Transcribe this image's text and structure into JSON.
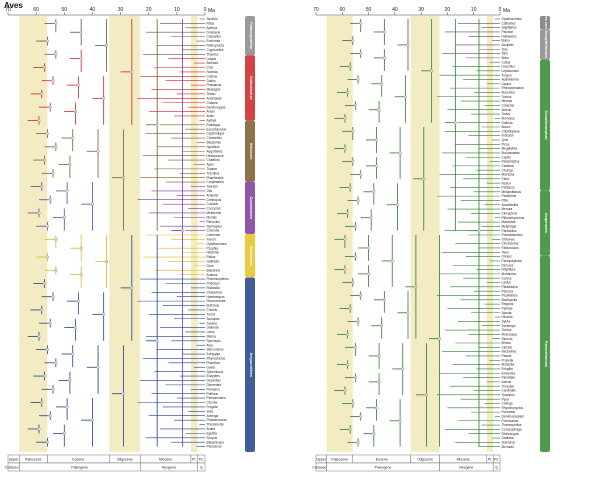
{
  "title": "Aves",
  "axis": {
    "left_ticks": [
      "70",
      "60",
      "50",
      "40",
      "30",
      "20",
      "10",
      "0"
    ],
    "right_ticks": [
      "70",
      "60",
      "50",
      "40",
      "30",
      "20",
      "10",
      "0"
    ],
    "unit": "Ma"
  },
  "timescale": {
    "epochs": [
      "Upper",
      "Paleocene",
      "Eocene",
      "Oligocene",
      "Miocene",
      "PI.",
      "Ps."
    ],
    "periods": [
      "Cretaceous",
      "Paleogene",
      "Neogene",
      "Q"
    ]
  },
  "left_clades": [
    {
      "name": "Palaeognathae",
      "color": "#8a8a8a"
    },
    {
      "name": "Galloanserae",
      "color": "#cc2222"
    },
    {
      "name": "Strisores",
      "color": "#7a5a2a"
    },
    {
      "name": "Columbaves",
      "color": "#7a3a9a"
    },
    {
      "name": "Otidimorphae",
      "color": "#7a3a9a"
    },
    {
      "name": "Columbimorphae",
      "color": "#7a3a9a"
    },
    {
      "name": "Gruiformes",
      "color": "#e8c020"
    },
    {
      "name": "Aequornithes",
      "color": "#1d3f8a"
    },
    {
      "name": "Neoaves",
      "color": "#1d3f8a"
    }
  ],
  "right_clades": [
    {
      "name": "Neoaves continued",
      "color": "#777777"
    },
    {
      "name": "Accipitriformes",
      "color": "#888888"
    },
    {
      "name": "Coraciimorphae",
      "color": "#2f8a2f"
    },
    {
      "name": "Inopinaves",
      "color": "#2f8a2f"
    },
    {
      "name": "Australaves",
      "color": "#2f8a2f"
    },
    {
      "name": "Passeriformes",
      "color": "#2f8a2f"
    }
  ],
  "left_taxa": [
    "Struthio",
    "Rhea",
    "Apteryx",
    "Dromaius",
    "Casuarius",
    "Eudromia",
    "Nothoprocta",
    "Crypturellus",
    "Tinamus",
    "Leipoa",
    "Alectura",
    "Crax",
    "Numida",
    "Colinus",
    "Gallus",
    "Phasianus",
    "Meleagris",
    "Tetrao",
    "Anseranas",
    "Chauna",
    "Dendrocygna",
    "Anser",
    "Anas",
    "Aythya",
    "Podargus",
    "Eurostopodus",
    "Caprimulgus",
    "Chordeiles",
    "Steatornis",
    "Nyctibius",
    "Aegotheles",
    "Hemiprocne",
    "Chaetura",
    "Apus",
    "Topaza",
    "Trochilus",
    "Phaethornis",
    "Corythaeola",
    "Tauraco",
    "Otis",
    "Ardeotis",
    "Centropus",
    "Cuculus",
    "Coccyzus",
    "Mesitornis",
    "Monias",
    "Pterocles",
    "Syrrhaptes",
    "Columba",
    "Caloenas",
    "Treron",
    "Opisthocomus",
    "Psophia",
    "Heliornis",
    "Rallus",
    "Gallinula",
    "Grus",
    "Balearica",
    "Aramus",
    "Phoenicopterus",
    "Podiceps",
    "Rollandia",
    "Charadrius",
    "Haematopus",
    "Recurvirostra",
    "Burhinus",
    "Chionis",
    "Turnix",
    "Scolopax",
    "Jacana",
    "Glareola",
    "Larus",
    "Sterna",
    "Rynchops",
    "Alca",
    "Stercorarius",
    "Eurypyga",
    "Rhynochetos",
    "Phaethon",
    "Gavia",
    "Spheniscus",
    "Eudyptes",
    "Oceanites",
    "Diomedea",
    "Fulmarus",
    "Puffinus",
    "Pelecanoides",
    "Ciconia",
    "Fregata",
    "Sula",
    "Anhinga",
    "Phalacrocorax",
    "Threskiornis",
    "Ardea",
    "Egretta",
    "Scopus",
    "Balaeniceps",
    "Pelecanus"
  ],
  "right_taxa": [
    "Opisthocomus",
    "Cathartes",
    "Sagittarius",
    "Pandion",
    "Haliaeetus",
    "Buteo",
    "Accipiter",
    "Tyto",
    "Strix",
    "Bubo",
    "Colius",
    "Urocolius",
    "Leptosomus",
    "Trogon",
    "Apaloderma",
    "Upupa",
    "Rhinopomastus",
    "Bucorvus",
    "Tockus",
    "Merops",
    "Coracias",
    "Alcedo",
    "Todus",
    "Momotus",
    "Galbula",
    "Bucco",
    "Chelidoptera",
    "Indicator",
    "Jynx",
    "Picus",
    "Megalaima",
    "Buccanastes",
    "Capito",
    "Ramphastos",
    "Cariama",
    "Chunga",
    "Micrastur",
    "Falco",
    "Nestor",
    "Psittacus",
    "Melopsittacus",
    "Psittrichas",
    "Pitta",
    "Acanthisitta",
    "Menura",
    "Climacteris",
    "Ptilonorhynchus",
    "Maluridae",
    "Meliphaga",
    "Pardalotus",
    "Pomatostomus",
    "Orthonyx",
    "Cinclosoma",
    "Falcunculus",
    "Vireo",
    "Oriolus",
    "Pachycephala",
    "Dicrurus",
    "Rhipidura",
    "Monarcha",
    "Corvus",
    "Lanius",
    "Paradisaea",
    "Petroica",
    "Picathartes",
    "Bombycilla",
    "Regulus",
    "Paridae",
    "Alauda",
    "Hirundo",
    "Sylvia",
    "Zosterops",
    "Turdus",
    "Muscicapa",
    "Sturnus",
    "Mimus",
    "Cinclus",
    "Nectarinia",
    "Passer",
    "Prunella",
    "Motacilla",
    "Fringilla",
    "Emberiza",
    "Parulidae",
    "Icterus",
    "Thraupis",
    "Cardinalis",
    "Tyrannus",
    "Pipra",
    "Cotinga",
    "Rhynchocyclus",
    "Furnarius",
    "Dendrocolaptes",
    "Formicarius",
    "Thamnophilus",
    "Conopophaga",
    "Rhinocrypta",
    "Grallaria",
    "Sclerurus",
    "Menura2"
  ]
}
